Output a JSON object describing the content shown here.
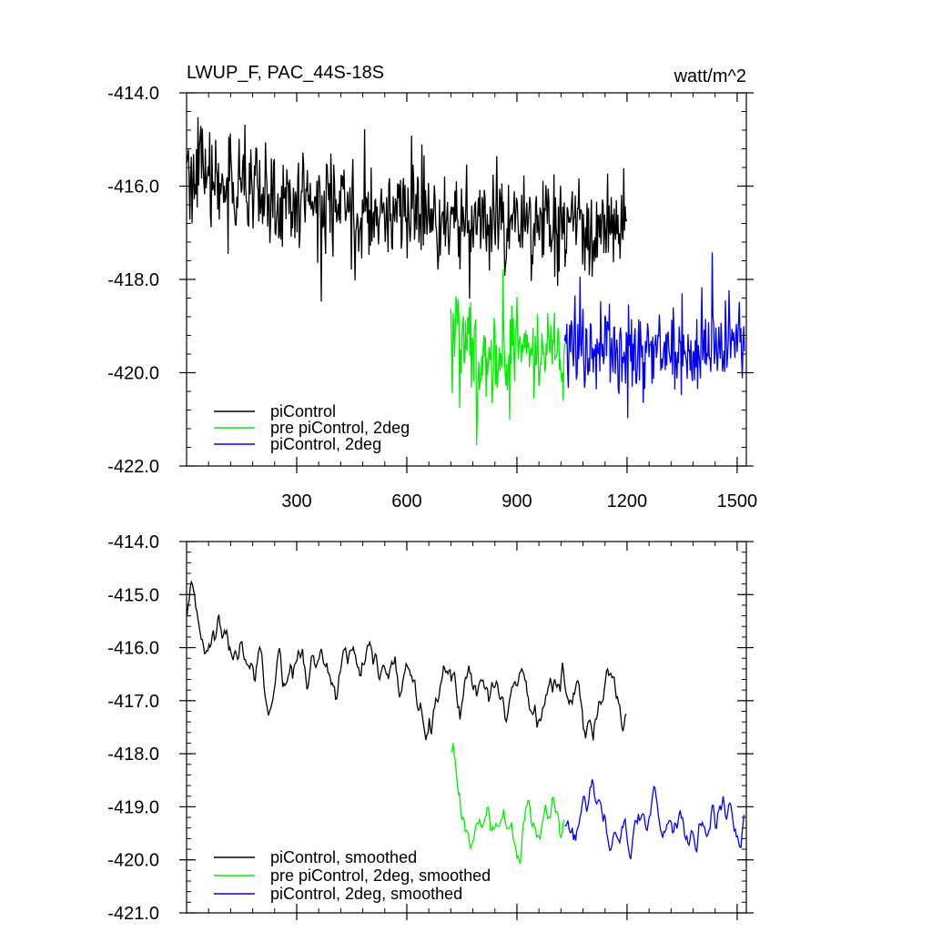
{
  "chart_data": [
    {
      "type": "line",
      "title": "LWUP_F, PAC_44S-18S",
      "units": "watt/m^2",
      "xlim": [
        0,
        1525
      ],
      "ylim": [
        -422.0,
        -414.0
      ],
      "x_ticks": [
        300,
        600,
        900,
        1200,
        1500
      ],
      "y_ticks": [
        -414.0,
        -416.0,
        -418.0,
        -420.0,
        -422.0
      ],
      "y_tick_labels": [
        "-414.0",
        "-416.0",
        "-418.0",
        "-420.0",
        "-422.0"
      ],
      "legend_position": "bottom-left",
      "series": [
        {
          "name": "piControl",
          "color": "#000000",
          "x_range": [
            1,
            1200
          ],
          "mean": [
            [
              0,
              -415.6
            ],
            [
              200,
              -416.3
            ],
            [
              600,
              -416.6
            ],
            [
              900,
              -416.8
            ],
            [
              1200,
              -417.0
            ]
          ],
          "noise": 0.6
        },
        {
          "name": "pre piControl, 2deg",
          "color": "#00ee00",
          "x_range": [
            720,
            1030
          ],
          "mean": [
            [
              720,
              -419.0
            ],
            [
              800,
              -419.7
            ],
            [
              1030,
              -419.5
            ]
          ],
          "noise": 0.55
        },
        {
          "name": "piControl, 2deg",
          "color": "#0000ff",
          "x_range": [
            1030,
            1520
          ],
          "mean": [
            [
              1030,
              -419.5
            ],
            [
              1300,
              -419.5
            ],
            [
              1520,
              -419.3
            ]
          ],
          "noise": 0.55
        }
      ]
    },
    {
      "type": "line",
      "title": "",
      "units": "",
      "xlim": [
        0,
        1525
      ],
      "ylim": [
        -421.0,
        -414.0
      ],
      "x_ticks": [
        300,
        600,
        900,
        1200,
        1500
      ],
      "y_ticks": [
        -414.0,
        -415.0,
        -416.0,
        -417.0,
        -418.0,
        -419.0,
        -420.0,
        -421.0
      ],
      "y_tick_labels": [
        "-414.0",
        "-415.0",
        "-416.0",
        "-417.0",
        "-418.0",
        "-419.0",
        "-420.0",
        "-421.0"
      ],
      "legend_position": "bottom-left",
      "series": [
        {
          "name": "piControl, smoothed",
          "color": "#000000",
          "x_range": [
            1,
            1200
          ],
          "mean": [
            [
              0,
              -415.5
            ],
            [
              200,
              -416.2
            ],
            [
              600,
              -416.6
            ],
            [
              900,
              -416.8
            ],
            [
              1200,
              -416.9
            ]
          ],
          "noise": 0.25
        },
        {
          "name": "pre piControl, 2deg, smoothed",
          "color": "#00ee00",
          "x_range": [
            720,
            1030
          ],
          "mean": [
            [
              720,
              -418.0
            ],
            [
              760,
              -419.6
            ],
            [
              1030,
              -419.3
            ]
          ],
          "noise": 0.25
        },
        {
          "name": "piControl, 2deg, smoothed",
          "color": "#0000ff",
          "x_range": [
            1030,
            1520
          ],
          "mean": [
            [
              1030,
              -419.3
            ],
            [
              1300,
              -419.4
            ],
            [
              1520,
              -419.2
            ]
          ],
          "noise": 0.25
        }
      ]
    }
  ]
}
